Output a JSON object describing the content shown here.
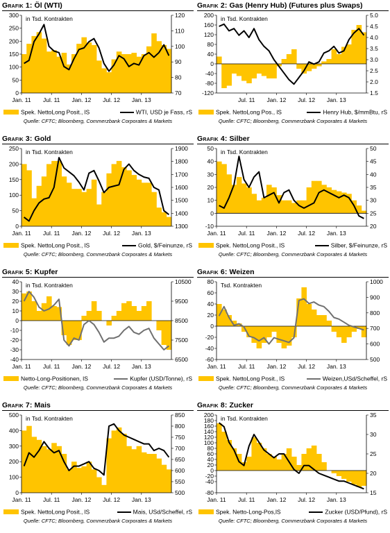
{
  "colors": {
    "bar_fill": "#FFC400",
    "line_black": "#000000",
    "line_grey": "#707070"
  },
  "months": 30,
  "chart_data": [
    {
      "type": "area",
      "title_label": "Grafik 1:",
      "title": "Öl (WTI)",
      "unit": "in Tsd. Kontrakten",
      "x_ticks": [
        "Jan. 11",
        "Jul. 11",
        "Jan. 12",
        "Jul. 12",
        "Jan. 13"
      ],
      "y_left": {
        "min": 0,
        "max": 300,
        "ticks": [
          0,
          50,
          100,
          150,
          200,
          250,
          300
        ]
      },
      "y_right": {
        "min": 70,
        "max": 120,
        "ticks": [
          70,
          80,
          90,
          100,
          110,
          120
        ]
      },
      "series": [
        {
          "name": "Spek. NettoLong Posit., lS",
          "axis": "left",
          "kind": "area",
          "values": [
            150,
            190,
            220,
            235,
            210,
            160,
            165,
            140,
            155,
            110,
            150,
            190,
            215,
            195,
            185,
            125,
            95,
            80,
            130,
            160,
            150,
            150,
            155,
            140,
            150,
            180,
            230,
            200,
            185,
            170
          ]
        },
        {
          "name": "WTI, USD je Fass, rS",
          "axis": "right",
          "kind": "line",
          "color": "#000000",
          "values": [
            89,
            91,
            103,
            108,
            114,
            100,
            97,
            96,
            87,
            85,
            92,
            98,
            99,
            103,
            105,
            99,
            89,
            84,
            88,
            94,
            92,
            87,
            89,
            88,
            94,
            96,
            93,
            96,
            101,
            94
          ]
        }
      ],
      "legend": [
        "Spek. NettoLong Posit., lS",
        "WTI, USD je Fass, rS"
      ],
      "source": "Quelle: CFTC; Bloomberg, Commerzbank Corporates & Markets"
    },
    {
      "type": "area",
      "title_label": "Grafik 2:",
      "title": "Gas (Henry Hub) (Futures plus Swaps)",
      "unit": "in Tsd. Kontrakten",
      "x_ticks": [
        "Jul. 11",
        "Jan. 12",
        "Jul. 12",
        "Jan. 13"
      ],
      "x_tick_months": [
        6,
        12,
        18,
        24
      ],
      "y_left": {
        "min": -120,
        "max": 200,
        "ticks": [
          -120,
          -80,
          -40,
          0,
          40,
          80,
          120,
          160,
          200
        ]
      },
      "y_right": {
        "min": 1.5,
        "max": 5.0,
        "ticks": [
          1.5,
          2.0,
          2.5,
          3.0,
          3.5,
          4.0,
          4.5,
          5.0
        ]
      },
      "series": [
        {
          "name": "Spek. NettoLong Pos., lS",
          "axis": "left",
          "kind": "area",
          "values": [
            30,
            -100,
            -90,
            -40,
            -50,
            -70,
            -80,
            -60,
            -40,
            -50,
            -60,
            -60,
            -10,
            20,
            40,
            60,
            -20,
            -40,
            -30,
            -20,
            -10,
            10,
            20,
            60,
            40,
            70,
            80,
            140,
            160,
            130
          ]
        },
        {
          "name": "Henry Hub, $/mmBtu, rS",
          "axis": "right",
          "kind": "line",
          "color": "#000000",
          "values": [
            4.5,
            4.6,
            4.3,
            4.4,
            4.1,
            4.3,
            4.0,
            4.4,
            3.9,
            3.6,
            3.4,
            3.0,
            2.7,
            2.4,
            2.1,
            1.9,
            2.2,
            2.5,
            2.9,
            2.8,
            2.9,
            3.3,
            3.4,
            3.6,
            3.3,
            3.4,
            3.9,
            4.2,
            4.4,
            4.1
          ]
        }
      ],
      "legend": [
        "Spek. NettoLong Pos., lS",
        "Henry Hub, $/mmBtu, rS"
      ],
      "source": "Quelle: CFTC; Bloomberg, Commerzbank Corporates & Markets"
    },
    {
      "type": "area",
      "title_label": "Grafik 3:",
      "title": "Gold",
      "unit": "in Tsd. Kontrakten",
      "x_ticks": [
        "Jan. 11",
        "Jul. 11",
        "Jan. 12",
        "Jul. 12",
        "Jan. 13"
      ],
      "y_left": {
        "min": 0,
        "max": 250,
        "ticks": [
          0,
          50,
          100,
          150,
          200,
          250
        ]
      },
      "y_right": {
        "min": 1300,
        "max": 1900,
        "ticks": [
          1300,
          1400,
          1500,
          1600,
          1700,
          1800,
          1900
        ]
      },
      "series": [
        {
          "name": "Spek. NettoLong Posit., lS",
          "axis": "left",
          "kind": "area",
          "values": [
            200,
            180,
            90,
            130,
            160,
            200,
            210,
            210,
            160,
            140,
            120,
            120,
            110,
            120,
            150,
            70,
            110,
            170,
            200,
            210,
            190,
            180,
            165,
            150,
            140,
            140,
            110,
            60,
            45,
            30
          ]
        },
        {
          "name": "Gold, $/Feinunze, rS",
          "axis": "right",
          "kind": "line",
          "color": "#000000",
          "values": [
            1370,
            1340,
            1420,
            1480,
            1510,
            1520,
            1600,
            1830,
            1750,
            1720,
            1690,
            1640,
            1580,
            1710,
            1730,
            1650,
            1560,
            1600,
            1610,
            1620,
            1740,
            1780,
            1730,
            1700,
            1680,
            1670,
            1600,
            1580,
            1420,
            1390
          ]
        }
      ],
      "legend": [
        "Spek. NettoLong Posit., lS",
        "Gold, $/Feinunze, rS"
      ],
      "source": "Quelle: CFTC; Bloomberg, Commerzbank Corporates & Markets"
    },
    {
      "type": "area",
      "title_label": "Grafik 4:",
      "title": "Silber",
      "unit": "in Tsd. Kontrakten",
      "x_ticks": [
        "Jan. 11",
        "Jul. 11",
        "Jan. 12",
        "Jul. 12",
        "Jan. 13"
      ],
      "y_left": {
        "min": -10,
        "max": 50,
        "ticks": [
          -10,
          0,
          10,
          20,
          30,
          40,
          50
        ]
      },
      "y_right": {
        "min": 20,
        "max": 50,
        "ticks": [
          20,
          25,
          30,
          35,
          40,
          45,
          50
        ]
      },
      "series": [
        {
          "name": "Spek. NettoLong Posit., lS",
          "axis": "left",
          "kind": "area",
          "values": [
            40,
            38,
            30,
            22,
            28,
            23,
            20,
            15,
            10,
            12,
            22,
            20,
            14,
            10,
            10,
            8,
            10,
            10,
            20,
            25,
            25,
            22,
            20,
            18,
            17,
            16,
            15,
            10,
            6,
            2
          ]
        },
        {
          "name": "Silber, $/Feinunze, rS",
          "axis": "right",
          "kind": "line",
          "color": "#000000",
          "values": [
            28,
            27,
            31,
            36,
            47,
            38,
            35,
            39,
            41,
            31,
            32,
            33,
            29,
            33,
            34,
            30,
            28,
            27,
            28,
            29,
            33,
            34,
            33,
            32,
            31,
            32,
            31,
            28,
            24,
            23
          ]
        }
      ],
      "legend": [
        "Spek. NettoLong Posit., lS",
        "Silber, $/Feinunze, rS"
      ],
      "source": "Quelle: CFTC; Bloomberg, Commerzbank Corporates & Markets"
    },
    {
      "type": "area",
      "title_label": "Grafik 5:",
      "title": "Kupfer",
      "unit": "in Tsd. Kontrakten",
      "x_ticks": [
        "Jan. 11",
        "Jul. 11",
        "Jan. 12",
        "Jul. 12",
        "Jan. 13"
      ],
      "y_left": {
        "min": -40,
        "max": 40,
        "ticks": [
          -40,
          -30,
          -20,
          -10,
          0,
          10,
          20,
          30,
          40
        ]
      },
      "y_right": {
        "min": 6500,
        "max": 10500,
        "ticks": [
          6500,
          7500,
          8500,
          9500,
          10500
        ]
      },
      "series": [
        {
          "name": "Netto-Long-Positionen, lS",
          "axis": "left",
          "kind": "area",
          "values": [
            28,
            30,
            20,
            10,
            18,
            25,
            15,
            14,
            -15,
            -25,
            -20,
            -20,
            5,
            10,
            20,
            10,
            0,
            -5,
            5,
            10,
            18,
            20,
            15,
            10,
            15,
            20,
            0,
            -10,
            -25,
            -30
          ]
        },
        {
          "name": "Kupfer (USD/Tonne), rS",
          "axis": "right",
          "kind": "line",
          "color": "#707070",
          "values": [
            9500,
            10000,
            9700,
            9200,
            9000,
            9100,
            9300,
            9600,
            7500,
            7200,
            7600,
            7500,
            8300,
            8500,
            8300,
            7900,
            7400,
            7600,
            7600,
            7700,
            8000,
            8200,
            7900,
            7800,
            8000,
            8100,
            7600,
            7300,
            7000,
            7200
          ]
        }
      ],
      "legend": [
        "Netto-Long-Positionen, lS",
        "Kupfer (USD/Tonne), rS"
      ],
      "source": "Quelle: CFTC; Bloomberg, Commerzbank Corporates & Markets"
    },
    {
      "type": "area",
      "title_label": "Grafik 6:",
      "title": "Weizen",
      "unit": "Tsd. Kontrakten",
      "x_ticks": [
        "Jan. 11",
        "Jul. 11",
        "Jan. 12",
        "Jul. 12",
        "Jan. 13"
      ],
      "y_left": {
        "min": -60,
        "max": 80,
        "ticks": [
          -60,
          -40,
          -20,
          0,
          20,
          40,
          60,
          80
        ]
      },
      "y_right": {
        "min": 500,
        "max": 1000,
        "ticks": [
          500,
          600,
          700,
          800,
          900,
          1000
        ]
      },
      "series": [
        {
          "name": "Spek. NettoLong Posit., lS",
          "axis": "left",
          "kind": "area",
          "values": [
            40,
            30,
            20,
            10,
            5,
            -10,
            -20,
            -30,
            -40,
            -30,
            -20,
            -10,
            -30,
            -40,
            -35,
            -20,
            50,
            70,
            40,
            30,
            20,
            20,
            10,
            -10,
            -20,
            -30,
            -20,
            -10,
            -5,
            -20
          ]
        },
        {
          "name": "Weizen,USd/Scheffel, rS",
          "axis": "right",
          "kind": "line",
          "color": "#707070",
          "values": [
            780,
            840,
            770,
            720,
            730,
            710,
            650,
            640,
            620,
            640,
            600,
            640,
            630,
            620,
            610,
            640,
            880,
            890,
            860,
            870,
            850,
            840,
            810,
            770,
            760,
            740,
            720,
            710,
            700,
            690
          ]
        }
      ],
      "legend": [
        "Spek. NettoLong Posit., lS",
        "Weizen,USd/Scheffel, rS"
      ],
      "source": "Quelle: CFTC; Bloomberg, Commerzbank Corporates & Markets"
    },
    {
      "type": "area",
      "title_label": "Grafik 7:",
      "title": "Mais",
      "unit": "in Tsd. Kontrakten",
      "x_ticks": [
        "Jan. 11",
        "Jul. 11",
        "Jan. 12",
        "Jul. 12",
        "Jan. 13"
      ],
      "y_left": {
        "min": 0,
        "max": 500,
        "ticks": [
          0,
          100,
          200,
          300,
          400,
          500
        ]
      },
      "y_right": {
        "min": 500,
        "max": 850,
        "ticks": [
          500,
          550,
          600,
          650,
          700,
          750,
          800,
          850
        ]
      },
      "series": [
        {
          "name": "Spek. NettoLong Posit., lS",
          "axis": "left",
          "kind": "area",
          "values": [
            400,
            430,
            360,
            340,
            300,
            280,
            320,
            300,
            250,
            150,
            200,
            160,
            170,
            200,
            150,
            100,
            50,
            350,
            400,
            420,
            380,
            300,
            280,
            300,
            260,
            250,
            250,
            220,
            180,
            150
          ]
        },
        {
          "name": "Mais, USd/Scheffel, rS",
          "axis": "right",
          "kind": "line",
          "color": "#000000",
          "values": [
            620,
            680,
            660,
            690,
            730,
            700,
            680,
            690,
            640,
            600,
            620,
            620,
            630,
            640,
            610,
            600,
            580,
            800,
            810,
            780,
            760,
            750,
            740,
            730,
            720,
            720,
            690,
            700,
            690,
            660
          ]
        }
      ],
      "legend": [
        "Spek. NettoLong Posit., lS",
        "Mais, USd/Scheffel, rS"
      ],
      "source": "Quelle: CFTC; Bloomberg, Commerzbank Corporates & Markets"
    },
    {
      "type": "area",
      "title_label": "Grafik 8:",
      "title": "Zucker",
      "unit": "in Tsd. Kontrakten",
      "x_ticks": [
        "Jan. 11",
        "Jul. 11",
        "Jan. 12",
        "Jul. 12",
        "Jan. 13"
      ],
      "y_left": {
        "min": -80,
        "max": 200,
        "ticks": [
          -80,
          -40,
          -20,
          0,
          20,
          40,
          60,
          80,
          100,
          120,
          140,
          160,
          180,
          200
        ]
      },
      "y_right": {
        "min": 15,
        "max": 35,
        "ticks": [
          15,
          20,
          25,
          30,
          35
        ]
      },
      "series": [
        {
          "name": "Spek. Netto-Long-Pos,lS",
          "axis": "left",
          "kind": "area",
          "values": [
            170,
            140,
            110,
            80,
            60,
            30,
            50,
            120,
            100,
            80,
            60,
            50,
            40,
            60,
            80,
            50,
            20,
            60,
            80,
            90,
            60,
            30,
            0,
            -10,
            -20,
            -30,
            -40,
            -50,
            -60,
            -55
          ]
        },
        {
          "name": "Zucker (USD/Pfund), rS",
          "axis": "right",
          "kind": "line",
          "color": "#000000",
          "values": [
            33,
            32,
            28,
            26,
            23,
            22,
            27,
            30,
            28,
            26,
            25,
            24,
            25,
            25,
            23,
            21,
            20,
            22,
            22,
            21,
            20,
            19.5,
            19,
            18.5,
            18,
            18,
            17.5,
            17,
            16.5,
            16
          ]
        }
      ],
      "legend": [
        "Spek. Netto-Long-Pos,lS",
        "Zucker (USD/Pfund), rS"
      ],
      "source": "Quelle: CFTC; Bloomberg, Commerzbank Corporates & Markets"
    }
  ]
}
